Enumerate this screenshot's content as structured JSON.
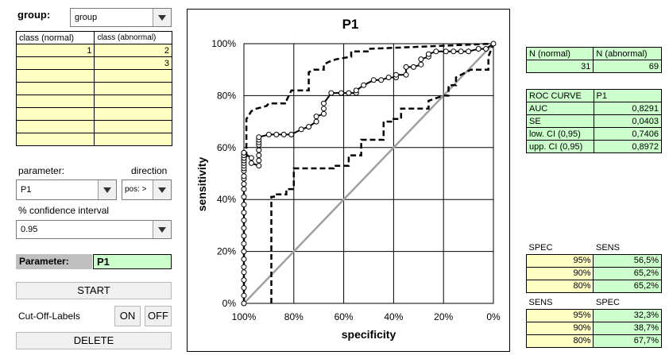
{
  "left_panel": {
    "group_label": "group:",
    "group_value": "group",
    "class_table": {
      "headers": [
        "class (normal)",
        "class (abnormal)"
      ],
      "rows": [
        [
          "1",
          "2"
        ],
        [
          "",
          "3"
        ],
        [
          "",
          ""
        ],
        [
          "",
          ""
        ],
        [
          "",
          ""
        ],
        [
          "",
          ""
        ],
        [
          "",
          ""
        ],
        [
          "",
          ""
        ]
      ]
    },
    "parameter_label": "parameter:",
    "direction_label": "direction",
    "parameter_value": "P1",
    "direction_value": "pos: >",
    "ci_label": "% confidence interval",
    "ci_value": "0.95",
    "parameter_box_label": "Parameter:",
    "parameter_box_value": "P1",
    "start_label": "START",
    "cutoff_label": "Cut-Off-Labels",
    "on_label": "ON",
    "off_label": "OFF",
    "delete_label": "DELETE"
  },
  "chart_data": {
    "type": "line",
    "title": "P1",
    "xlabel": "specificity",
    "ylabel": "sensitivity",
    "x_ticks": [
      "100%",
      "80%",
      "60%",
      "40%",
      "20%",
      "0%"
    ],
    "y_ticks": [
      "100%",
      "80%",
      "60%",
      "40%",
      "20%",
      "0%"
    ],
    "xlim": [
      100,
      0
    ],
    "ylim": [
      0,
      100
    ],
    "grid": true,
    "series": [
      {
        "name": "ROC",
        "style": "solid-markers",
        "x": [
          100,
          100,
          100,
          100,
          100,
          100,
          100,
          100,
          100,
          100,
          100,
          100,
          100,
          100,
          100,
          100,
          100,
          100,
          100,
          100,
          100,
          100,
          100,
          100,
          100,
          100,
          100,
          100,
          100,
          100,
          97,
          97,
          94,
          94,
          94,
          94,
          94,
          94,
          94,
          94,
          90,
          87,
          84,
          81,
          81,
          77,
          74,
          71,
          71,
          68,
          68,
          68,
          65,
          61,
          58,
          55,
          55,
          52,
          48,
          45,
          42,
          39,
          39,
          35,
          35,
          32,
          29,
          29,
          26,
          26,
          23,
          19,
          16,
          13,
          10,
          6,
          3,
          0
        ],
        "y": [
          0,
          3,
          6,
          9,
          12,
          14,
          17,
          20,
          23,
          26,
          29,
          32,
          35,
          38,
          41,
          44,
          46,
          48,
          49,
          51,
          52,
          53,
          54,
          55,
          55,
          56,
          56,
          57,
          58,
          58,
          56,
          54,
          53,
          55,
          57,
          59,
          61,
          62,
          63,
          64,
          65,
          65,
          65,
          65,
          65,
          67,
          68,
          70,
          72,
          73,
          75,
          77,
          81,
          81,
          81,
          81,
          82,
          84,
          86,
          86,
          87,
          87,
          88,
          88,
          91,
          91,
          92,
          94,
          95,
          96,
          97,
          97,
          97,
          97,
          97,
          98,
          98,
          100
        ]
      },
      {
        "name": "lower CI",
        "style": "dashed",
        "x": [
          89,
          89,
          88,
          88,
          83,
          83,
          80,
          80,
          64,
          64,
          58,
          58,
          53,
          53,
          44,
          44,
          40,
          40,
          37,
          37,
          26,
          26,
          20,
          18,
          18,
          15,
          15,
          9,
          2,
          2,
          0
        ],
        "y": [
          0,
          41,
          41,
          42,
          42,
          44,
          44,
          52,
          52,
          53,
          53,
          57,
          57,
          63,
          63,
          70,
          70,
          71,
          71,
          75,
          75,
          78,
          80,
          80,
          84,
          84,
          87,
          90,
          90,
          95,
          100
        ]
      },
      {
        "name": "upper CI",
        "style": "dashed",
        "x": [
          100,
          100,
          99,
          99,
          97,
          95,
          95,
          91,
          90,
          83,
          83,
          81,
          74,
          74,
          72,
          72,
          68,
          68,
          66,
          63,
          57,
          57,
          50,
          50,
          0
        ],
        "y": [
          0,
          55,
          55,
          71,
          74,
          75,
          75,
          76,
          77,
          77,
          78,
          82,
          82,
          89,
          90,
          90,
          90,
          92,
          93,
          94,
          95,
          97,
          97,
          98,
          100
        ]
      },
      {
        "name": "diagonal",
        "style": "gray",
        "x": [
          100,
          0
        ],
        "y": [
          0,
          100
        ]
      }
    ]
  },
  "n_table": {
    "headers": [
      "N (normal)",
      "N (abnormal)"
    ],
    "values": [
      "31",
      "69"
    ]
  },
  "roc_table": {
    "title": "ROC CURVE",
    "param": "P1",
    "rows": [
      {
        "label": "AUC",
        "value": "0,8291"
      },
      {
        "label": "SE",
        "value": "0,0403"
      },
      {
        "label": "low. CI (0,95)",
        "value": "0,7406"
      },
      {
        "label": "upp. CI (0,95)",
        "value": "0,8972"
      }
    ]
  },
  "spec_sens_table": {
    "headers": [
      "SPEC",
      "SENS"
    ],
    "rows": [
      [
        "95%",
        "56,5%"
      ],
      [
        "90%",
        "65,2%"
      ],
      [
        "80%",
        "65,2%"
      ]
    ]
  },
  "sens_spec_table": {
    "headers": [
      "SENS",
      "SPEC"
    ],
    "rows": [
      [
        "95%",
        "32,3%"
      ],
      [
        "90%",
        "38,7%"
      ],
      [
        "80%",
        "67,7%"
      ]
    ]
  }
}
